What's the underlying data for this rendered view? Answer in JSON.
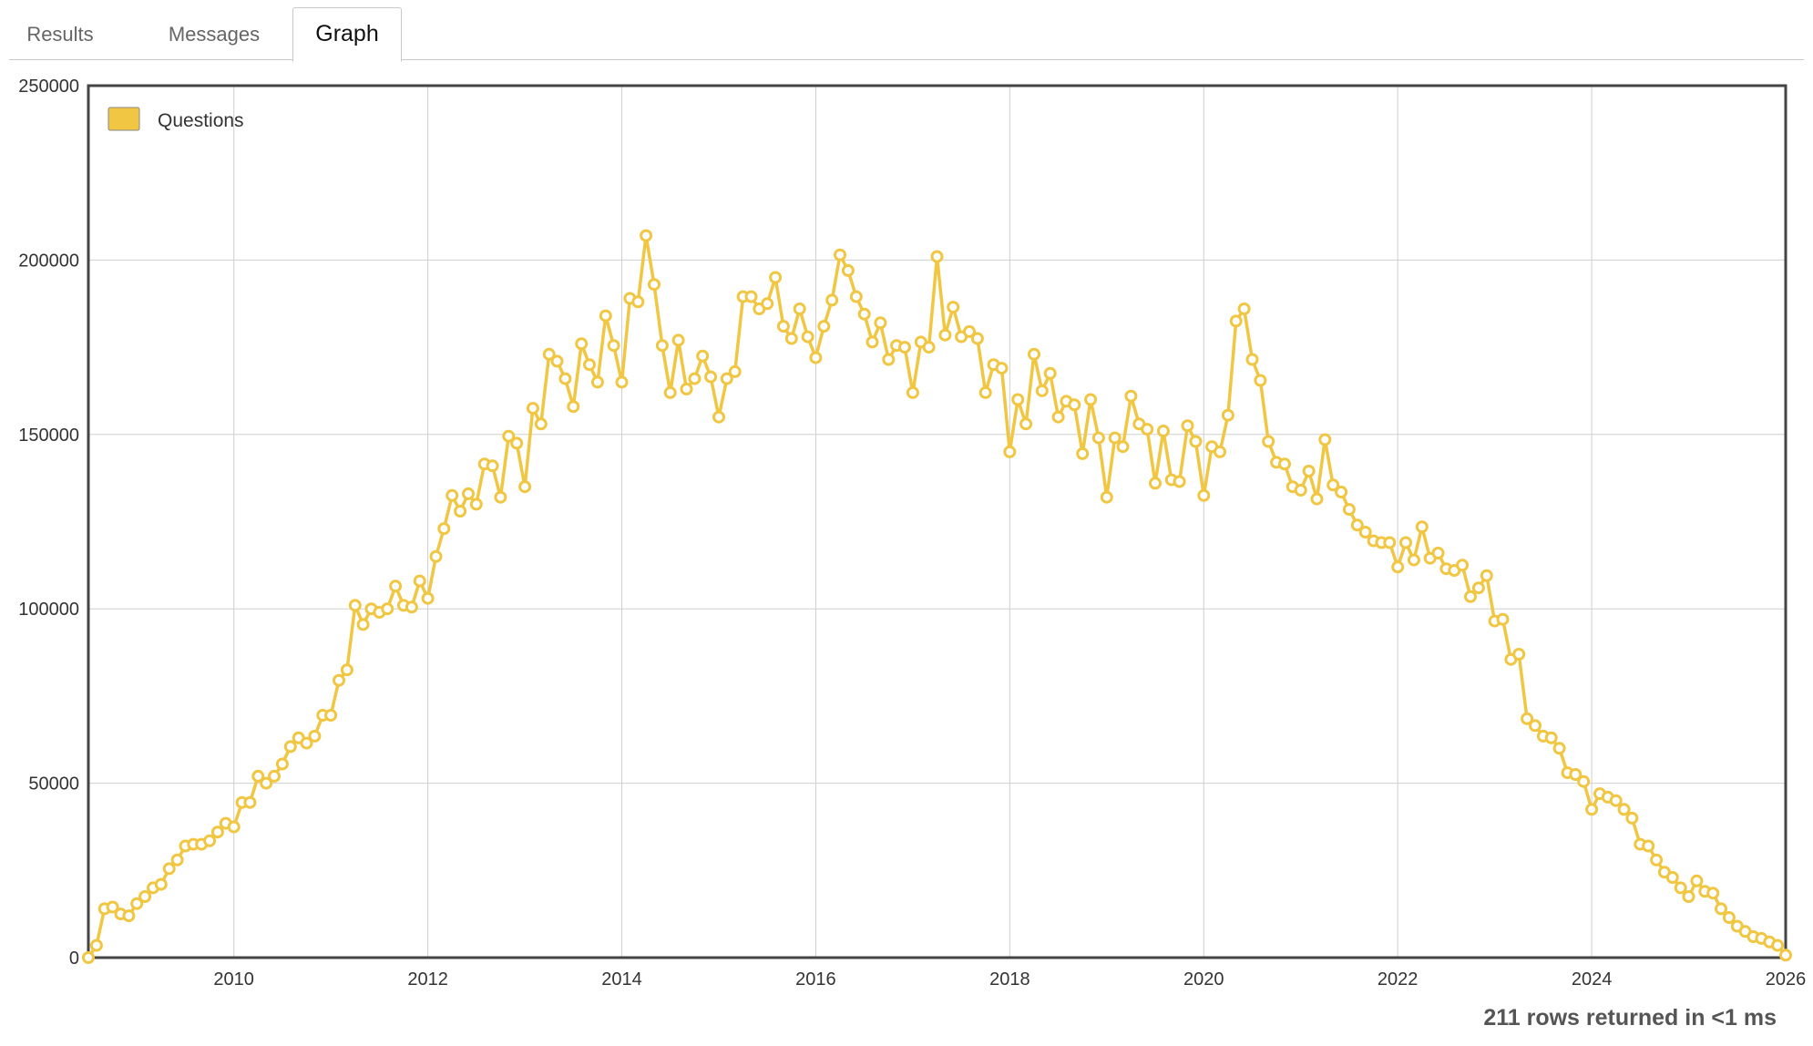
{
  "tabs": [
    {
      "label": "Results",
      "active": false
    },
    {
      "label": "Messages",
      "active": false
    },
    {
      "label": "Graph",
      "active": true
    }
  ],
  "footer": {
    "status": "211 rows returned in <1 ms"
  },
  "chart_data": {
    "type": "line",
    "series": [
      {
        "name": "Questions",
        "color": "#f0c642",
        "x": [
          "2008-07",
          "2008-08",
          "2008-09",
          "2008-10",
          "2008-11",
          "2008-12",
          "2009-01",
          "2009-02",
          "2009-03",
          "2009-04",
          "2009-05",
          "2009-06",
          "2009-07",
          "2009-08",
          "2009-09",
          "2009-10",
          "2009-11",
          "2009-12",
          "2010-01",
          "2010-02",
          "2010-03",
          "2010-04",
          "2010-05",
          "2010-06",
          "2010-07",
          "2010-08",
          "2010-09",
          "2010-10",
          "2010-11",
          "2010-12",
          "2011-01",
          "2011-02",
          "2011-03",
          "2011-04",
          "2011-05",
          "2011-06",
          "2011-07",
          "2011-08",
          "2011-09",
          "2011-10",
          "2011-11",
          "2011-12",
          "2012-01",
          "2012-02",
          "2012-03",
          "2012-04",
          "2012-05",
          "2012-06",
          "2012-07",
          "2012-08",
          "2012-09",
          "2012-10",
          "2012-11",
          "2012-12",
          "2013-01",
          "2013-02",
          "2013-03",
          "2013-04",
          "2013-05",
          "2013-06",
          "2013-07",
          "2013-08",
          "2013-09",
          "2013-10",
          "2013-11",
          "2013-12",
          "2014-01",
          "2014-02",
          "2014-03",
          "2014-04",
          "2014-05",
          "2014-06",
          "2014-07",
          "2014-08",
          "2014-09",
          "2014-10",
          "2014-11",
          "2014-12",
          "2015-01",
          "2015-02",
          "2015-03",
          "2015-04",
          "2015-05",
          "2015-06",
          "2015-07",
          "2015-08",
          "2015-09",
          "2015-10",
          "2015-11",
          "2015-12",
          "2016-01",
          "2016-02",
          "2016-03",
          "2016-04",
          "2016-05",
          "2016-06",
          "2016-07",
          "2016-08",
          "2016-09",
          "2016-10",
          "2016-11",
          "2016-12",
          "2017-01",
          "2017-02",
          "2017-03",
          "2017-04",
          "2017-05",
          "2017-06",
          "2017-07",
          "2017-08",
          "2017-09",
          "2017-10",
          "2017-11",
          "2017-12",
          "2018-01",
          "2018-02",
          "2018-03",
          "2018-04",
          "2018-05",
          "2018-06",
          "2018-07",
          "2018-08",
          "2018-09",
          "2018-10",
          "2018-11",
          "2018-12",
          "2019-01",
          "2019-02",
          "2019-03",
          "2019-04",
          "2019-05",
          "2019-06",
          "2019-07",
          "2019-08",
          "2019-09",
          "2019-10",
          "2019-11",
          "2019-12",
          "2020-01",
          "2020-02",
          "2020-03",
          "2020-04",
          "2020-05",
          "2020-06",
          "2020-07",
          "2020-08",
          "2020-09",
          "2020-10",
          "2020-11",
          "2020-12",
          "2021-01",
          "2021-02",
          "2021-03",
          "2021-04",
          "2021-05",
          "2021-06",
          "2021-07",
          "2021-08",
          "2021-09",
          "2021-10",
          "2021-11",
          "2021-12",
          "2022-01",
          "2022-02",
          "2022-03",
          "2022-04",
          "2022-05",
          "2022-06",
          "2022-07",
          "2022-08",
          "2022-09",
          "2022-10",
          "2022-11",
          "2022-12",
          "2023-01",
          "2023-02",
          "2023-03",
          "2023-04",
          "2023-05",
          "2023-06",
          "2023-07",
          "2023-08",
          "2023-09",
          "2023-10",
          "2023-11",
          "2023-12",
          "2024-01",
          "2024-02",
          "2024-03",
          "2024-04",
          "2024-05",
          "2024-06",
          "2024-07",
          "2024-08",
          "2024-09",
          "2024-10",
          "2024-11",
          "2024-12",
          "2025-01",
          "2025-02",
          "2025-03",
          "2025-04",
          "2025-05",
          "2025-06",
          "2025-07",
          "2025-08",
          "2025-09",
          "2025-10",
          "2025-11",
          "2025-12",
          "2026-01"
        ],
        "values": [
          0,
          3500,
          14000,
          14500,
          12500,
          12000,
          15500,
          17500,
          20000,
          21000,
          25500,
          28000,
          32000,
          32500,
          32500,
          33500,
          36000,
          38500,
          37500,
          44500,
          44500,
          52000,
          50000,
          52000,
          55500,
          60500,
          63000,
          61500,
          63500,
          69500,
          69500,
          79500,
          82500,
          101000,
          95500,
          100000,
          99000,
          100000,
          106500,
          101000,
          100500,
          108000,
          103000,
          115000,
          123000,
          132500,
          128000,
          133000,
          130000,
          141500,
          141000,
          132000,
          149500,
          147500,
          135000,
          157500,
          153000,
          173000,
          171000,
          166000,
          158000,
          176000,
          170000,
          165000,
          184000,
          175500,
          165000,
          189000,
          188000,
          207000,
          193000,
          175500,
          162000,
          177000,
          163000,
          166000,
          172500,
          166500,
          155000,
          166000,
          168000,
          189500,
          189500,
          186000,
          187500,
          195000,
          181000,
          177500,
          186000,
          178000,
          172000,
          181000,
          188500,
          201500,
          197000,
          189500,
          184500,
          176500,
          182000,
          171500,
          175500,
          175000,
          162000,
          176500,
          175000,
          201000,
          178500,
          186500,
          178000,
          179500,
          177500,
          162000,
          170000,
          169000,
          145000,
          160000,
          153000,
          173000,
          162500,
          167500,
          155000,
          159500,
          158500,
          144500,
          160000,
          149000,
          132000,
          149000,
          146500,
          161000,
          153000,
          151500,
          136000,
          151000,
          137000,
          136500,
          152500,
          148000,
          132500,
          146500,
          145000,
          155500,
          182500,
          186000,
          171500,
          165500,
          148000,
          142000,
          141500,
          135000,
          134000,
          139500,
          131500,
          148500,
          135500,
          133500,
          128500,
          124000,
          122000,
          119500,
          119000,
          119000,
          112000,
          119000,
          114000,
          123500,
          114500,
          116000,
          111500,
          111000,
          112500,
          103500,
          106000,
          109500,
          96500,
          97000,
          85500,
          87000,
          68500,
          66500,
          63500,
          63000,
          60000,
          53000,
          52500,
          50500,
          42500,
          47000,
          46000,
          45000,
          42500,
          40000,
          32500,
          32000,
          28000,
          24500,
          23000,
          20000,
          17500,
          22000,
          19000,
          18500,
          14000,
          11500,
          9000,
          7500,
          6000,
          5500,
          4500,
          3500,
          700
        ]
      }
    ],
    "title": "",
    "xlabel": "",
    "ylabel": "",
    "x_ticks": [
      "2010",
      "2012",
      "2014",
      "2016",
      "2018",
      "2020",
      "2022",
      "2024",
      "2026"
    ],
    "y_ticks": [
      0,
      50000,
      100000,
      150000,
      200000,
      250000
    ],
    "xlim": [
      "2008-07",
      "2026-01"
    ],
    "ylim": [
      0,
      250000
    ],
    "grid": true,
    "legend": "top-left"
  }
}
